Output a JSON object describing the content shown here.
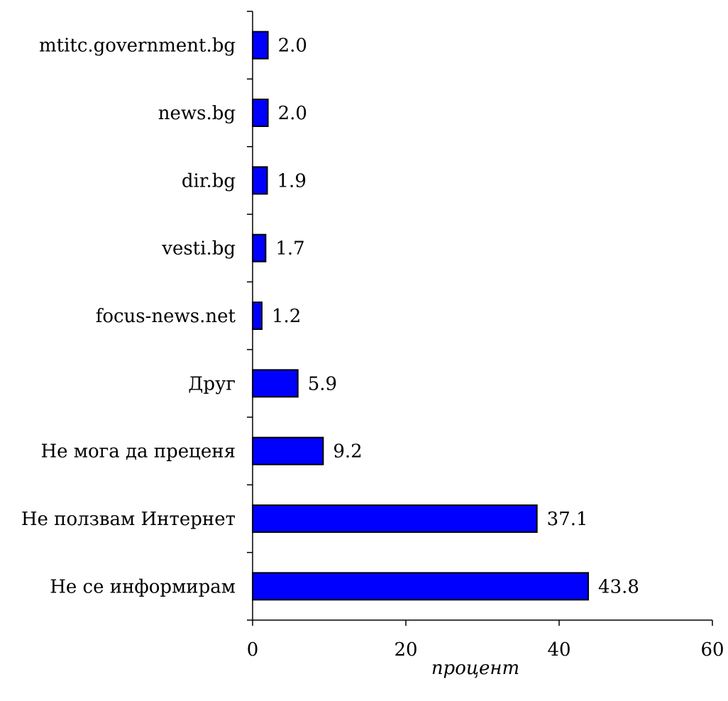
{
  "chart_data": {
    "type": "bar",
    "orientation": "horizontal",
    "categories": [
      "mtitc.government.bg",
      "news.bg",
      "dir.bg",
      "vesti.bg",
      "focus-news.net",
      "Друг",
      "Не мога да преценя",
      "Не ползвам Интернет",
      "Не се информирам"
    ],
    "values": [
      2.0,
      2.0,
      1.9,
      1.7,
      1.2,
      5.9,
      9.2,
      37.1,
      43.8
    ],
    "value_labels": [
      "2.0",
      "2.0",
      "1.9",
      "1.7",
      "1.2",
      "5.9",
      "9.2",
      "37.1",
      "43.8"
    ],
    "x_ticks": [
      "0",
      "20",
      "40",
      "60"
    ],
    "xlabel": "процент",
    "xlim": [
      0,
      60
    ],
    "grid": false,
    "bar_color": "#0000ff",
    "bar_edge_color": "#000000"
  }
}
